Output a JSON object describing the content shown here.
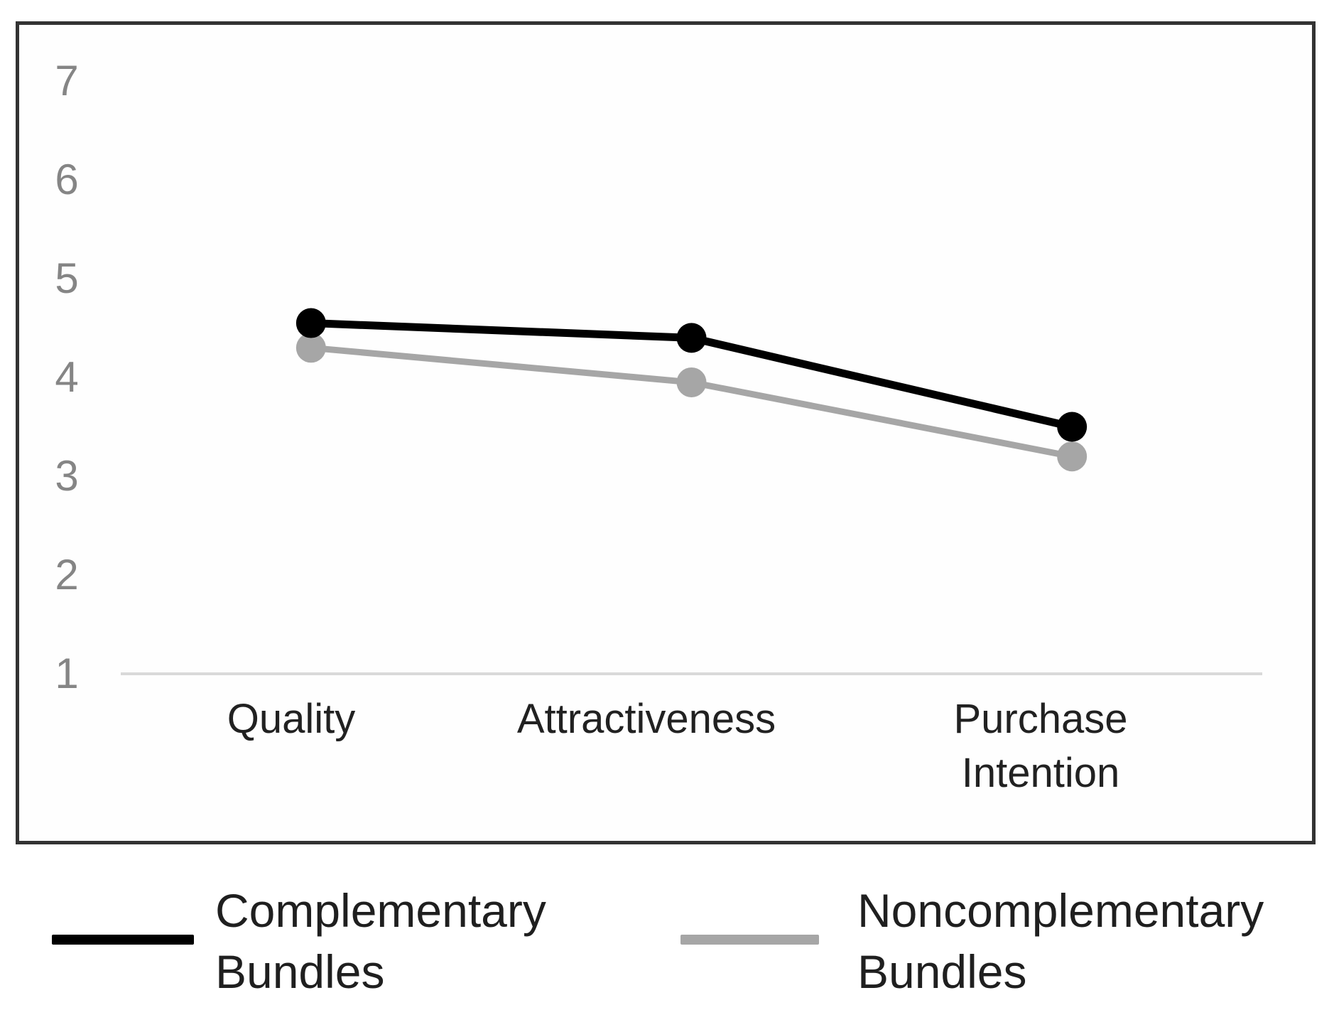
{
  "chart_data": {
    "type": "line",
    "categories": [
      "Quality",
      "Attractiveness",
      "Purchase Intention"
    ],
    "series": [
      {
        "name": "Complementary Bundles",
        "color": "#000000",
        "values": [
          4.55,
          4.4,
          3.5
        ]
      },
      {
        "name": "Noncomplementary Bundles",
        "color": "#a6a6a6",
        "values": [
          4.3,
          3.95,
          3.2
        ]
      }
    ],
    "title": "",
    "xlabel": "",
    "ylabel": "",
    "ylim": [
      1,
      7
    ],
    "yticks": [
      7,
      6,
      5,
      4,
      3,
      2,
      1
    ],
    "grid": "off",
    "axis_line_color": "#d9d9d9",
    "tick_label_color": "#858585",
    "category_label_color": "#212121",
    "legend_position": "bottom"
  },
  "legend": {
    "items": [
      {
        "label": "Complementary Bundles",
        "swatch_color": "#000000"
      },
      {
        "label": "Noncomplementary Bundles",
        "swatch_color": "#a6a6a6"
      }
    ]
  }
}
